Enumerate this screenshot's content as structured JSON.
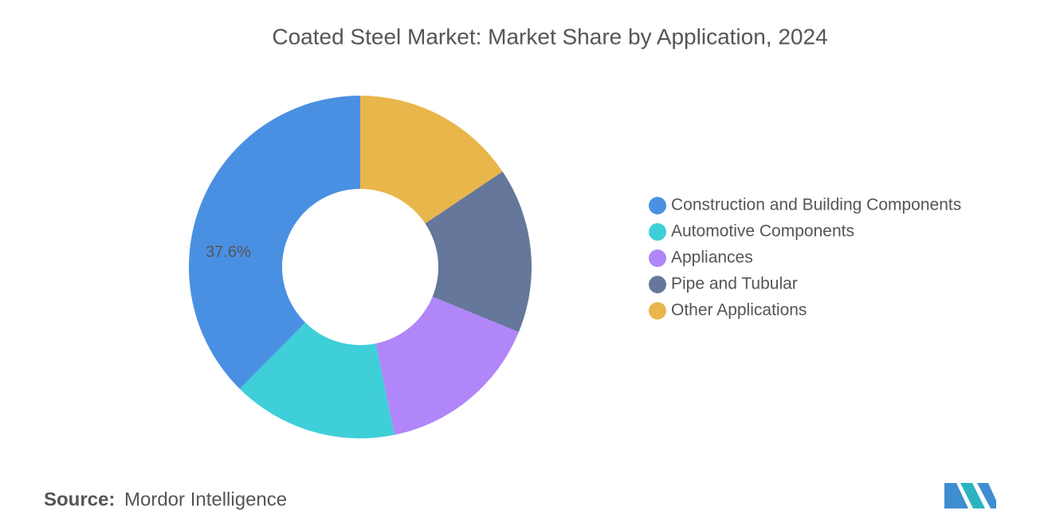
{
  "chart_data": {
    "type": "donut",
    "title": "Coated Steel Market: Market Share by Application, 2024",
    "categories": [
      "Construction and Building Components",
      "Automotive Components",
      "Appliances",
      "Pipe and Tubular",
      "Other Applications"
    ],
    "values": [
      37.6,
      15.6,
      15.6,
      15.6,
      15.6
    ],
    "value_labels": [
      "37.6%",
      null,
      null,
      null,
      null
    ],
    "colors": [
      "#4a90e2",
      "#3ecfd9",
      "#b086f8",
      "#65779a",
      "#e9b64b"
    ],
    "legend": "right"
  },
  "source": {
    "label": "Source:",
    "text": "Mordor Intelligence"
  }
}
